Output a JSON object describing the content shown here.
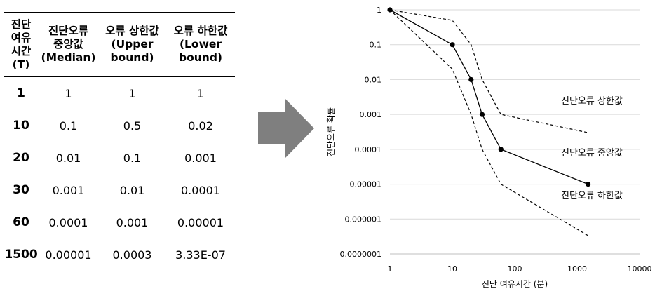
{
  "table": {
    "headers": [
      [
        "진단",
        "여유",
        "시간",
        "(T)"
      ],
      [
        "진단오류",
        "중앙값",
        "(Median)"
      ],
      [
        "오류 상한값",
        "(Upper",
        "bound)"
      ],
      [
        "오류 하한값",
        "(Lower",
        "bound)"
      ]
    ],
    "rows": [
      [
        "1",
        "1",
        "1",
        "1"
      ],
      [
        "10",
        "0.1",
        "0.5",
        "0.02"
      ],
      [
        "20",
        "0.01",
        "0.1",
        "0.001"
      ],
      [
        "30",
        "0.001",
        "0.01",
        "0.0001"
      ],
      [
        "60",
        "0.0001",
        "0.001",
        "0.00001"
      ],
      [
        "1500",
        "0.00001",
        "0.0003",
        "3.33E-07"
      ]
    ]
  },
  "arrow": {
    "color": "#7f7f7f",
    "icon": "right-arrow-icon"
  },
  "chart_data": {
    "type": "line",
    "xlabel": "진단 여유시간 (분)",
    "ylabel": "진단오류 확률",
    "x_scale": "log",
    "y_scale": "log",
    "xlim": [
      1,
      10000
    ],
    "ylim": [
      1e-07,
      1
    ],
    "x_ticks": [
      "1",
      "10",
      "100",
      "1000",
      "10000"
    ],
    "y_ticks": [
      "1",
      "0.1",
      "0.01",
      "0.001",
      "0.0001",
      "0.00001",
      "0.000001",
      "0.0000001"
    ],
    "grid": "horizontal",
    "series": [
      {
        "name": "진단오류 중앙값",
        "style": "solid-markers",
        "color": "#000000",
        "x": [
          1,
          10,
          20,
          30,
          60,
          1500
        ],
        "y": [
          1,
          0.1,
          0.01,
          0.001,
          0.0001,
          1e-05
        ]
      },
      {
        "name": "진단오류 상한값",
        "style": "dashed",
        "color": "#000000",
        "x": [
          1,
          10,
          20,
          30,
          60,
          1500
        ],
        "y": [
          1,
          0.5,
          0.1,
          0.01,
          0.001,
          0.0003
        ]
      },
      {
        "name": "진단오류 하한값",
        "style": "dashed",
        "color": "#000000",
        "x": [
          1,
          10,
          20,
          30,
          60,
          1500
        ],
        "y": [
          1,
          0.02,
          0.001,
          0.0001,
          1e-05,
          3.33e-07
        ]
      }
    ],
    "annotations": [
      "진단오류 상한값",
      "진단오류 중앙값",
      "진단오류 하한값"
    ]
  }
}
